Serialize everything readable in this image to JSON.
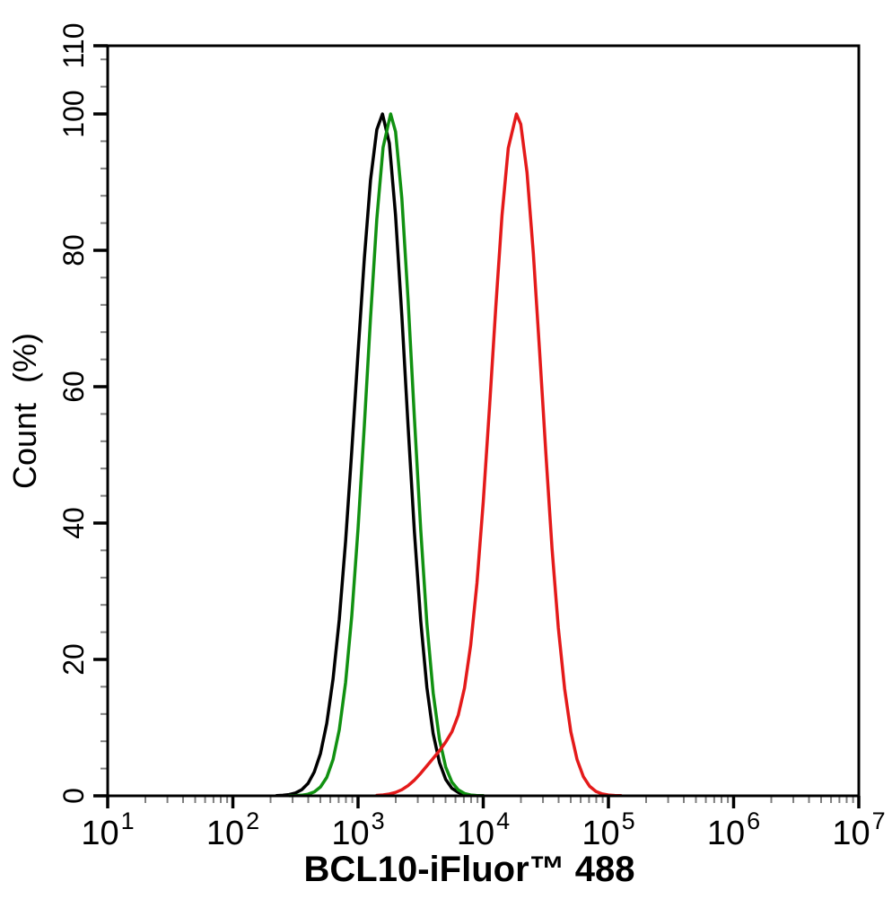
{
  "figure": {
    "background": "#ffffff",
    "frame_color": "#000000",
    "major_tick_color": "#000000",
    "minor_tick_color": "#7f7f7f"
  },
  "chart_data": {
    "type": "line",
    "subtype": "flow-cytometry-overlay-histogram",
    "title": "",
    "xlabel": "BCL10-iFluor™ 488",
    "ylabel": "Count (%)",
    "x_scale": "log10",
    "xlim_log": [
      1,
      7
    ],
    "x_tick_base": 10,
    "x_tick_exponents": [
      1,
      2,
      3,
      4,
      5,
      6,
      7
    ],
    "ylim": [
      0,
      110
    ],
    "y_major_ticks": [
      0,
      20,
      40,
      60,
      80,
      100,
      110
    ],
    "y_minor_step": 4,
    "grid": false,
    "legend": "none",
    "series": [
      {
        "name": "black",
        "color": "#000000",
        "peak_x_approx": 1570,
        "peak_log10": 3.195,
        "peak_count_pct": 100,
        "points_log10x_pct": [
          [
            2.35,
            0.03
          ],
          [
            2.4,
            0.08
          ],
          [
            2.45,
            0.18
          ],
          [
            2.5,
            0.42
          ],
          [
            2.55,
            0.89
          ],
          [
            2.6,
            1.8
          ],
          [
            2.65,
            3.5
          ],
          [
            2.7,
            6.2
          ],
          [
            2.75,
            10.6
          ],
          [
            2.8,
            17.1
          ],
          [
            2.85,
            25.9
          ],
          [
            2.9,
            37.3
          ],
          [
            2.95,
            50.6
          ],
          [
            3.0,
            65.0
          ],
          [
            3.05,
            78.8
          ],
          [
            3.1,
            90.3
          ],
          [
            3.15,
            97.7
          ],
          [
            3.195,
            100
          ],
          [
            3.25,
            95.7
          ],
          [
            3.3,
            85.1
          ],
          [
            3.35,
            70.4
          ],
          [
            3.4,
            54.1
          ],
          [
            3.45,
            38.7
          ],
          [
            3.5,
            25.7
          ],
          [
            3.55,
            15.9
          ],
          [
            3.6,
            9.1
          ],
          [
            3.65,
            4.9
          ],
          [
            3.7,
            2.4
          ],
          [
            3.75,
            1.1
          ],
          [
            3.8,
            0.5
          ],
          [
            3.85,
            0.2
          ],
          [
            3.9,
            0.07
          ],
          [
            3.95,
            0.03
          ],
          [
            4.0,
            0.01
          ]
        ]
      },
      {
        "name": "green",
        "color": "#119111",
        "peak_x_approx": 1820,
        "peak_log10": 3.26,
        "peak_count_pct": 100,
        "points_log10x_pct": [
          [
            2.45,
            0.01
          ],
          [
            2.5,
            0.03
          ],
          [
            2.55,
            0.09
          ],
          [
            2.6,
            0.24
          ],
          [
            2.65,
            0.58
          ],
          [
            2.7,
            1.3
          ],
          [
            2.75,
            2.7
          ],
          [
            2.8,
            5.3
          ],
          [
            2.85,
            9.7
          ],
          [
            2.9,
            16.6
          ],
          [
            2.95,
            26.4
          ],
          [
            3.0,
            39.2
          ],
          [
            3.05,
            54.3
          ],
          [
            3.1,
            70.1
          ],
          [
            3.15,
            84.6
          ],
          [
            3.2,
            95.1
          ],
          [
            3.26,
            100
          ],
          [
            3.3,
            97.4
          ],
          [
            3.35,
            87.6
          ],
          [
            3.4,
            72.6
          ],
          [
            3.45,
            55.4
          ],
          [
            3.5,
            39.1
          ],
          [
            3.55,
            25.3
          ],
          [
            3.6,
            15.1
          ],
          [
            3.65,
            8.3
          ],
          [
            3.7,
            4.2
          ],
          [
            3.75,
            2.0
          ],
          [
            3.8,
            0.9
          ],
          [
            3.85,
            0.34
          ],
          [
            3.9,
            0.12
          ],
          [
            3.95,
            0.04
          ],
          [
            4.0,
            0.01
          ]
        ]
      },
      {
        "name": "red",
        "color": "#e41a1a",
        "peak_x_approx": 18400,
        "peak_log10": 4.265,
        "peak_count_pct": 100,
        "left_shoulder_pct": 7,
        "points_log10x_pct": [
          [
            3.15,
            0.06
          ],
          [
            3.2,
            0.13
          ],
          [
            3.25,
            0.26
          ],
          [
            3.3,
            0.5
          ],
          [
            3.35,
            0.9
          ],
          [
            3.4,
            1.5
          ],
          [
            3.45,
            2.3
          ],
          [
            3.5,
            3.3
          ],
          [
            3.55,
            4.4
          ],
          [
            3.6,
            5.5
          ],
          [
            3.65,
            6.6
          ],
          [
            3.7,
            7.9
          ],
          [
            3.75,
            9.4
          ],
          [
            3.8,
            11.8
          ],
          [
            3.85,
            15.8
          ],
          [
            3.9,
            22.1
          ],
          [
            3.95,
            31.2
          ],
          [
            4.0,
            43.1
          ],
          [
            4.05,
            57.0
          ],
          [
            4.1,
            71.7
          ],
          [
            4.15,
            85.1
          ],
          [
            4.2,
            95.0
          ],
          [
            4.265,
            100
          ],
          [
            4.3,
            98.5
          ],
          [
            4.35,
            91.4
          ],
          [
            4.4,
            79.6
          ],
          [
            4.45,
            65.2
          ],
          [
            4.5,
            50.2
          ],
          [
            4.55,
            36.2
          ],
          [
            4.6,
            24.6
          ],
          [
            4.65,
            15.7
          ],
          [
            4.7,
            9.4
          ],
          [
            4.75,
            5.3
          ],
          [
            4.8,
            2.8
          ],
          [
            4.85,
            1.4
          ],
          [
            4.9,
            0.65
          ],
          [
            4.95,
            0.28
          ],
          [
            5.0,
            0.12
          ],
          [
            5.05,
            0.05
          ],
          [
            5.1,
            0.02
          ]
        ]
      }
    ]
  }
}
